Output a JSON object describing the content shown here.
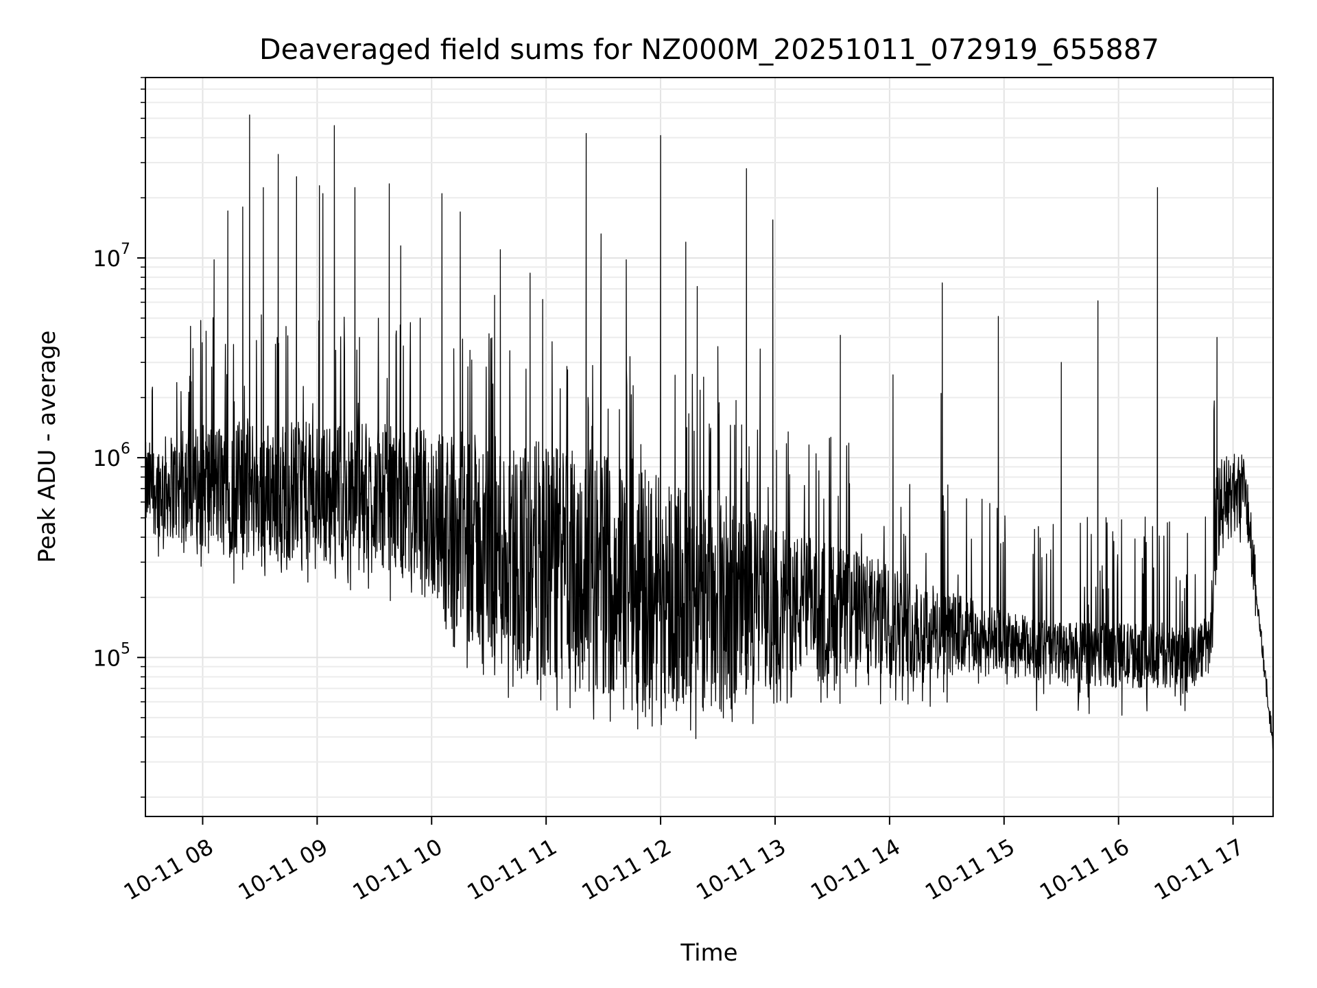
{
  "chart_data": {
    "type": "line",
    "title": "Deaveraged field sums for NZ000M_20251011_072919_655887",
    "xlabel": "Time",
    "ylabel": "Peak ADU - average",
    "yscale": "log",
    "ylim": [
      16000,
      80000000
    ],
    "xlim_hours": [
      7.5,
      17.35
    ],
    "x_ticks": [
      {
        "value": 8,
        "label": "10-11 08"
      },
      {
        "value": 9,
        "label": "10-11 09"
      },
      {
        "value": 10,
        "label": "10-11 10"
      },
      {
        "value": 11,
        "label": "10-11 11"
      },
      {
        "value": 12,
        "label": "10-11 12"
      },
      {
        "value": 13,
        "label": "10-11 13"
      },
      {
        "value": 14,
        "label": "10-11 14"
      },
      {
        "value": 15,
        "label": "10-11 15"
      },
      {
        "value": 16,
        "label": "10-11 16"
      },
      {
        "value": 17,
        "label": "10-11 17"
      }
    ],
    "y_ticks": [
      {
        "value": 100000,
        "base": "10",
        "exp": "5"
      },
      {
        "value": 1000000,
        "base": "10",
        "exp": "6"
      },
      {
        "value": 10000000,
        "base": "10",
        "exp": "7"
      }
    ],
    "grid": true,
    "line_color": "#000000",
    "envelope": [
      [
        7.5,
        420000,
        1200000
      ],
      [
        8.0,
        350000,
        1500000
      ],
      [
        8.5,
        300000,
        1600000
      ],
      [
        9.0,
        300000,
        1500000
      ],
      [
        9.5,
        300000,
        1500000
      ],
      [
        10.0,
        200000,
        1400000
      ],
      [
        10.5,
        90000,
        1300000
      ],
      [
        11.0,
        70000,
        1200000
      ],
      [
        11.5,
        65000,
        1100000
      ],
      [
        12.0,
        55000,
        900000
      ],
      [
        12.5,
        55000,
        700000
      ],
      [
        13.0,
        75000,
        450000
      ],
      [
        13.5,
        80000,
        380000
      ],
      [
        14.0,
        80000,
        300000
      ],
      [
        14.5,
        80000,
        220000
      ],
      [
        15.0,
        80000,
        170000
      ],
      [
        15.5,
        75000,
        150000
      ],
      [
        16.0,
        70000,
        150000
      ],
      [
        16.5,
        70000,
        150000
      ],
      [
        16.8,
        80000,
        160000
      ],
      [
        16.85,
        300000,
        1000000
      ],
      [
        17.1,
        500000,
        1100000
      ],
      [
        17.2,
        150000,
        300000
      ],
      [
        17.35,
        22000,
        60000
      ]
    ],
    "spikes": [
      {
        "x": 7.9,
        "y": 2400000
      },
      {
        "x": 8.03,
        "y": 4300000
      },
      {
        "x": 8.1,
        "y": 9800000
      },
      {
        "x": 8.22,
        "y": 17200000
      },
      {
        "x": 8.35,
        "y": 18000000
      },
      {
        "x": 8.41,
        "y": 52000000
      },
      {
        "x": 8.53,
        "y": 22500000
      },
      {
        "x": 8.66,
        "y": 33000000
      },
      {
        "x": 8.82,
        "y": 25500000
      },
      {
        "x": 9.02,
        "y": 23000000
      },
      {
        "x": 9.05,
        "y": 21000000
      },
      {
        "x": 9.15,
        "y": 46000000
      },
      {
        "x": 9.33,
        "y": 22500000
      },
      {
        "x": 9.37,
        "y": 4000000
      },
      {
        "x": 9.63,
        "y": 23500000
      },
      {
        "x": 9.73,
        "y": 11500000
      },
      {
        "x": 9.9,
        "y": 5000000
      },
      {
        "x": 10.09,
        "y": 21000000
      },
      {
        "x": 10.25,
        "y": 17000000
      },
      {
        "x": 10.55,
        "y": 6500000
      },
      {
        "x": 10.6,
        "y": 11000000
      },
      {
        "x": 10.86,
        "y": 8400000
      },
      {
        "x": 10.97,
        "y": 6200000
      },
      {
        "x": 11.35,
        "y": 42000000
      },
      {
        "x": 11.48,
        "y": 13200000
      },
      {
        "x": 11.7,
        "y": 9800000
      },
      {
        "x": 12.0,
        "y": 41000000
      },
      {
        "x": 12.22,
        "y": 12000000
      },
      {
        "x": 12.32,
        "y": 7200000
      },
      {
        "x": 12.5,
        "y": 3600000
      },
      {
        "x": 12.75,
        "y": 28000000
      },
      {
        "x": 12.87,
        "y": 3500000
      },
      {
        "x": 12.98,
        "y": 15500000
      },
      {
        "x": 13.57,
        "y": 4100000
      },
      {
        "x": 14.03,
        "y": 2600000
      },
      {
        "x": 14.45,
        "y": 2100000
      },
      {
        "x": 14.46,
        "y": 7500000
      },
      {
        "x": 14.95,
        "y": 5100000
      },
      {
        "x": 15.5,
        "y": 3000000
      },
      {
        "x": 15.82,
        "y": 6100000
      },
      {
        "x": 16.34,
        "y": 22500000
      },
      {
        "x": 16.86,
        "y": 4000000
      }
    ]
  }
}
